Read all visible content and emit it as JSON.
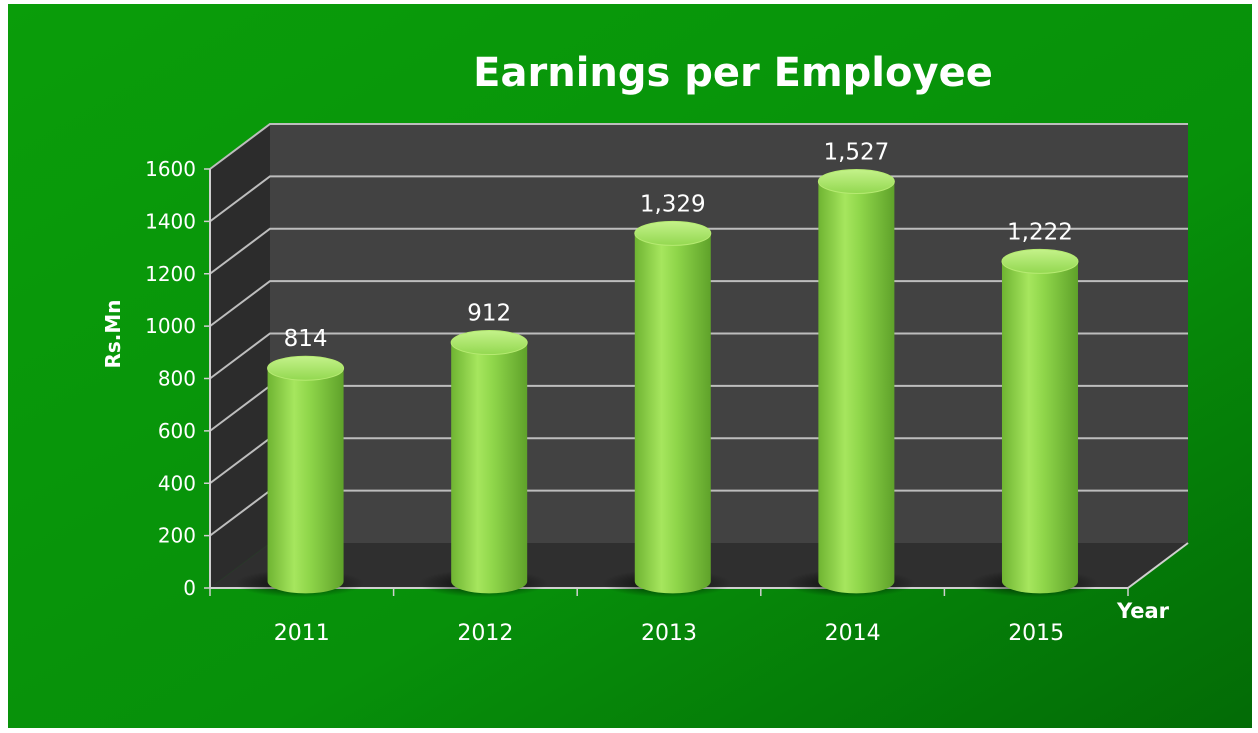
{
  "chart_data": {
    "type": "bar",
    "title": "Earnings per Employee",
    "xlabel": "Year",
    "ylabel": "Rs.Mn",
    "categories": [
      "2011",
      "2012",
      "2013",
      "2014",
      "2015"
    ],
    "values": [
      814,
      912,
      1329,
      1527,
      1222
    ],
    "data_labels": [
      "814",
      "912",
      "1,329",
      "1,527",
      "1,222"
    ],
    "y_ticks": [
      "0",
      "200",
      "400",
      "600",
      "800",
      "1000",
      "1200",
      "1400",
      "1600"
    ],
    "ylim": [
      0,
      1600
    ],
    "grid": true,
    "legend": "none",
    "style": "3d-cylinder",
    "colors": {
      "background": "#0a9a0a",
      "bar": "#8ad644",
      "plot_back_wall": "#424242",
      "plot_side_wall": "#2c2c2c",
      "text": "#ffffff"
    }
  }
}
